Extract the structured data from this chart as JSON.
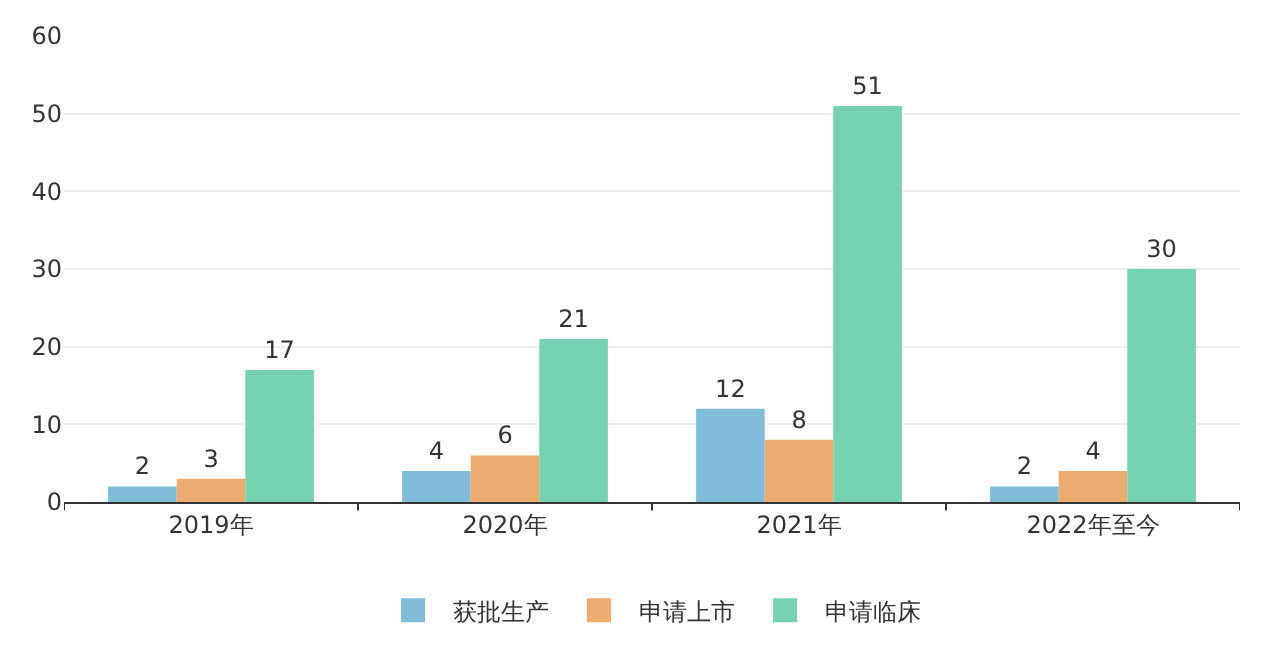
{
  "chart_data": {
    "type": "bar",
    "categories": [
      "2019年",
      "2020年",
      "2021年",
      "2022年至今"
    ],
    "series": [
      {
        "name": "获批生产",
        "color": "#80bddb",
        "values": [
          2,
          4,
          12,
          2
        ]
      },
      {
        "name": "申请上市",
        "color": "#eeab70",
        "values": [
          3,
          6,
          8,
          4
        ]
      },
      {
        "name": "申请临床",
        "color": "#76d3b1",
        "values": [
          17,
          21,
          51,
          30
        ]
      }
    ],
    "ylim": [
      0,
      60
    ],
    "yticks": [
      0,
      10,
      20,
      30,
      40,
      50,
      60
    ],
    "grid": "y",
    "legend": "bottom",
    "data_labels": true
  }
}
